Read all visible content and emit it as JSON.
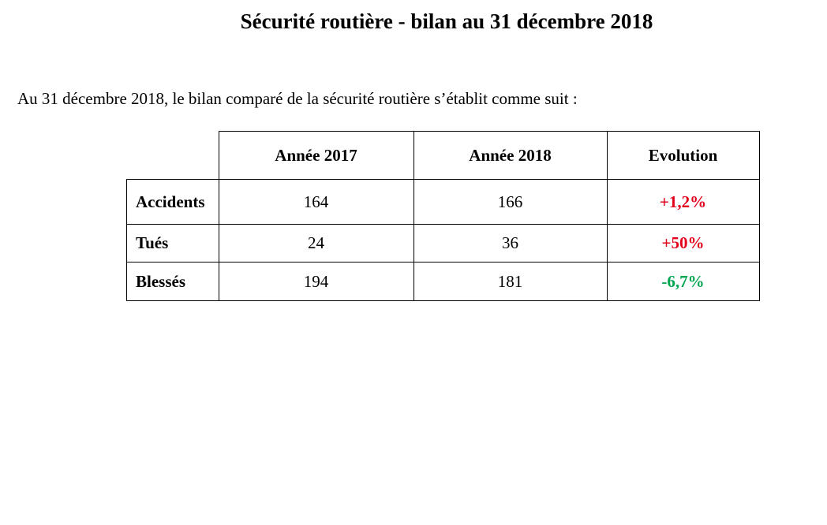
{
  "title": "Sécurité routière - bilan au 31 décembre 2018",
  "intro": "Au 31 décembre 2018, le bilan comparé de la sécurité routière s’établit comme suit :",
  "table": {
    "header": [
      "Année 2017",
      "Année 2018",
      "Evolution"
    ],
    "rows": [
      [
        "Accidents",
        "164",
        "166",
        "+1,2%"
      ],
      [
        "Tués",
        "24",
        "36",
        "+50%"
      ],
      [
        "Blessés",
        "194",
        "181",
        "-6,7%"
      ]
    ]
  }
}
